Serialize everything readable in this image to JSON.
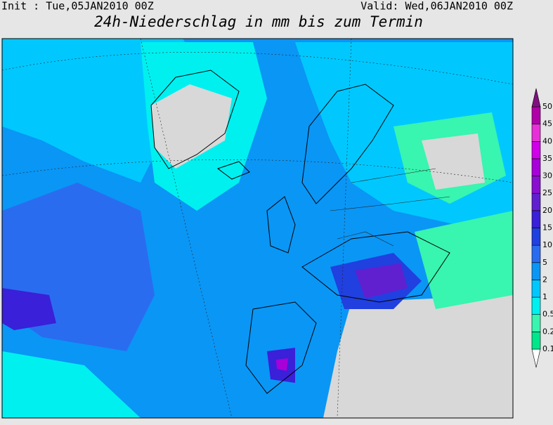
{
  "header": {
    "init": "Init : Tue,05JAN2010 00Z",
    "valid": "Valid: Wed,06JAN2010 00Z",
    "title": "24h-Niederschlag in mm bis zum Termin"
  },
  "legend": {
    "levels": [
      0.1,
      0.2,
      0.5,
      1,
      2,
      5,
      10,
      15,
      20,
      25,
      30,
      35,
      40,
      45,
      50
    ],
    "colors": [
      "#ffffff",
      "#00e68a",
      "#38f5b0",
      "#00f0f0",
      "#00c8ff",
      "#0a96f5",
      "#2a6cf0",
      "#2040e0",
      "#3a20d8",
      "#6020d0",
      "#8a10d0",
      "#a800d8",
      "#d000e8",
      "#e830d8",
      "#b000a8",
      "#80107f"
    ]
  }
}
